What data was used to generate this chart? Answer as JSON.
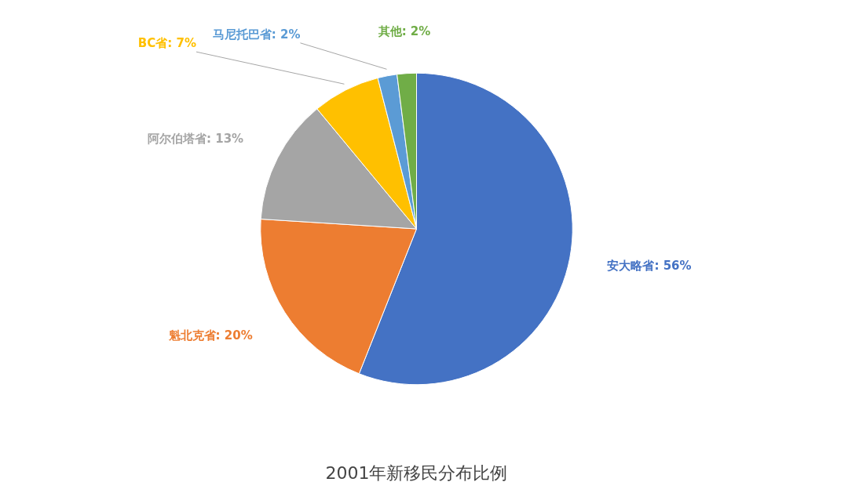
{
  "chart_data": {
    "type": "pie",
    "title": "2001年新移民分布比例",
    "categories": [
      "安大略省",
      "魁北克省",
      "阿尔伯塔省",
      "BC省",
      "马尼托巴省",
      "其他"
    ],
    "values": [
      56,
      20,
      13,
      7,
      2,
      2
    ],
    "value_labels": [
      "56%",
      "20%",
      "13%",
      "7%",
      "2%",
      "2%"
    ],
    "colors": [
      "#4472c4",
      "#ed7d31",
      "#a5a5a5",
      "#ffc000",
      "#5b9bd5",
      "#70ad47"
    ]
  }
}
